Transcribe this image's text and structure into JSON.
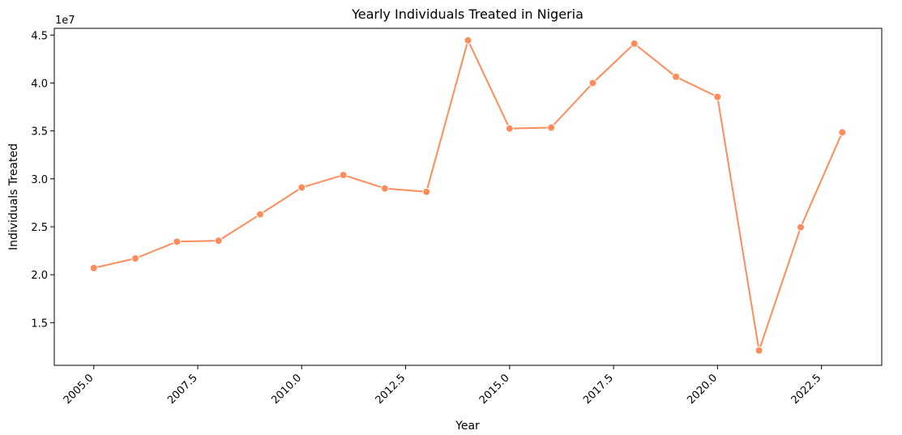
{
  "chart_data": {
    "type": "line",
    "title": "Yearly Individuals Treated in Nigeria",
    "xlabel": "Year",
    "ylabel": "Individuals Treated",
    "y_offset_label": "1e7",
    "xlim": [
      2004.05,
      2023.95
    ],
    "ylim": [
      10550000,
      45700000
    ],
    "x_ticks": [
      2005.0,
      2007.5,
      2010.0,
      2012.5,
      2015.0,
      2017.5,
      2020.0,
      2022.5
    ],
    "x_tick_labels": [
      "2005.0",
      "2007.5",
      "2010.0",
      "2012.5",
      "2015.0",
      "2017.5",
      "2020.0",
      "2022.5"
    ],
    "y_ticks": [
      15000000,
      20000000,
      25000000,
      30000000,
      35000000,
      40000000,
      45000000
    ],
    "y_tick_labels": [
      "1.5",
      "2.0",
      "2.5",
      "3.0",
      "3.5",
      "4.0",
      "4.5"
    ],
    "grid": false,
    "color": "#ff8c5a",
    "series": [
      {
        "x": [
          2005,
          2006,
          2007,
          2008,
          2009,
          2010,
          2011,
          2012,
          2013,
          2014,
          2015,
          2016,
          2017,
          2018,
          2019,
          2020,
          2021,
          2022,
          2023
        ],
        "y": [
          20700000,
          21700000,
          23450000,
          23550000,
          26300000,
          29100000,
          30400000,
          29000000,
          28650000,
          44450000,
          35250000,
          35350000,
          40000000,
          44100000,
          40650000,
          38550000,
          12100000,
          24950000,
          34850000
        ]
      }
    ]
  }
}
